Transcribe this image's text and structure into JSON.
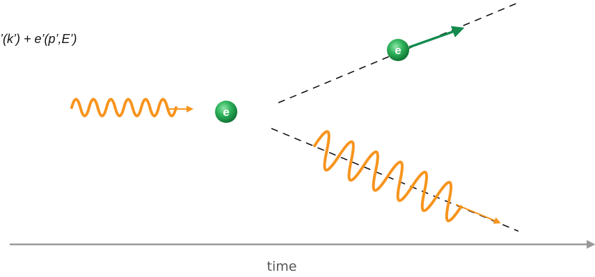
{
  "equation": "’(k’) + e’(p’,E’)",
  "electron_in": "e",
  "electron_out": "e",
  "axis_label": "time"
}
